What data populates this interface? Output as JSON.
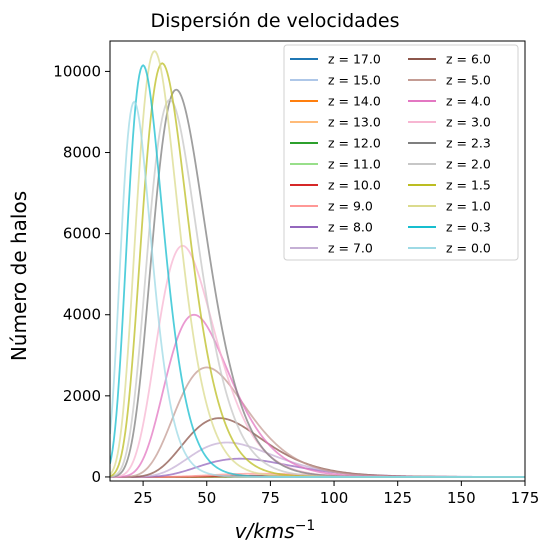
{
  "chart_data": {
    "type": "line",
    "title": "Dispersión de velocidades",
    "xlabel_main": "v/kms",
    "xlabel_sup": "−1",
    "ylabel": "Número de halos",
    "xlim": [
      12,
      175
    ],
    "ylim": [
      -100,
      10750
    ],
    "x_ticks": [
      25,
      50,
      75,
      100,
      125,
      150,
      175
    ],
    "y_ticks": [
      0,
      2000,
      4000,
      6000,
      8000,
      10000
    ],
    "legend_position": "top-right",
    "legend_columns": 2,
    "series": [
      {
        "name": "z = 17.0",
        "color": "#1f77b4",
        "peak_x": 90,
        "peak_y": 2,
        "sigma": 0.28
      },
      {
        "name": "z = 15.0",
        "color": "#aec7e8",
        "peak_x": 88,
        "peak_y": 4,
        "sigma": 0.28
      },
      {
        "name": "z = 14.0",
        "color": "#ff7f0e",
        "peak_x": 85,
        "peak_y": 6,
        "sigma": 0.28
      },
      {
        "name": "z = 13.0",
        "color": "#ffbb78",
        "peak_x": 82,
        "peak_y": 9,
        "sigma": 0.28
      },
      {
        "name": "z = 12.0",
        "color": "#2ca02c",
        "peak_x": 80,
        "peak_y": 12,
        "sigma": 0.28
      },
      {
        "name": "z = 11.0",
        "color": "#98df8a",
        "peak_x": 77,
        "peak_y": 18,
        "sigma": 0.28
      },
      {
        "name": "z = 10.0",
        "color": "#d62728",
        "peak_x": 75,
        "peak_y": 30,
        "sigma": 0.28
      },
      {
        "name": "z = 9.0",
        "color": "#ff9896",
        "peak_x": 70,
        "peak_y": 80,
        "sigma": 0.28
      },
      {
        "name": "z = 8.0",
        "color": "#9467bd",
        "peak_x": 63,
        "peak_y": 450,
        "sigma": 0.28
      },
      {
        "name": "z = 7.0",
        "color": "#c5b0d5",
        "peak_x": 58,
        "peak_y": 850,
        "sigma": 0.28
      },
      {
        "name": "z = 6.0",
        "color": "#8c564b",
        "peak_x": 55,
        "peak_y": 1450,
        "sigma": 0.28
      },
      {
        "name": "z = 5.0",
        "color": "#c49c94",
        "peak_x": 50,
        "peak_y": 2700,
        "sigma": 0.28
      },
      {
        "name": "z = 4.0",
        "color": "#e377c2",
        "peak_x": 45,
        "peak_y": 4000,
        "sigma": 0.28
      },
      {
        "name": "z = 3.0",
        "color": "#f7b6d2",
        "peak_x": 40.5,
        "peak_y": 5700,
        "sigma": 0.28
      },
      {
        "name": "z = 2.3",
        "color": "#7f7f7f",
        "peak_x": 38,
        "peak_y": 9550,
        "sigma": 0.28
      },
      {
        "name": "z = 2.0",
        "color": "#c7c7c7",
        "peak_x": 35.5,
        "peak_y": 9300,
        "sigma": 0.28
      },
      {
        "name": "z = 1.5",
        "color": "#bcbd22",
        "peak_x": 32.5,
        "peak_y": 10200,
        "sigma": 0.28
      },
      {
        "name": "z = 1.0",
        "color": "#dbdb8d",
        "peak_x": 29.5,
        "peak_y": 10500,
        "sigma": 0.28
      },
      {
        "name": "z = 0.3",
        "color": "#17becf",
        "peak_x": 25,
        "peak_y": 10150,
        "sigma": 0.28
      },
      {
        "name": "z = 0.0",
        "color": "#9edae5",
        "peak_x": 21.5,
        "peak_y": 9250,
        "sigma": 0.28
      }
    ]
  }
}
